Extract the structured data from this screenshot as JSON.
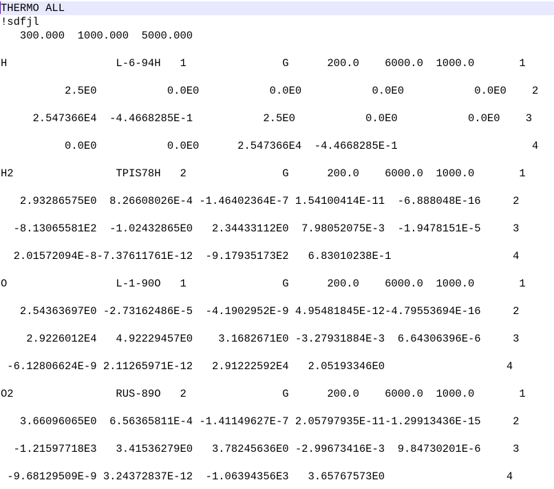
{
  "editor": {
    "current_line_color": "#e8e8ff",
    "caret_color": "#8000ff",
    "lines": [
      "THERMO ALL",
      "!sdfjl",
      "   300.000  1000.000  5000.000",
      "",
      "H                 L-6-94H   1               G      200.0    6000.0  1000.0       1",
      "",
      "          2.5E0           0.0E0           0.0E0           0.0E0           0.0E0    2",
      "",
      "     2.547366E4  -4.4668285E-1           2.5E0           0.0E0           0.0E0    3",
      "",
      "          0.0E0           0.0E0      2.547366E4  -4.4668285E-1                     4",
      "",
      "H2                TPIS78H   2               G      200.0    6000.0  1000.0       1",
      "",
      "   2.93286575E0  8.26608026E-4 -1.46402364E-7 1.54100414E-11  -6.888048E-16     2",
      "",
      "  -8.13065581E2  -1.02432865E0   2.34433112E0  7.98052075E-3  -1.9478151E-5     3",
      "",
      "  2.01572094E-8-7.37611761E-12  -9.17935173E2   6.83010238E-1                   4",
      "",
      "O                 L-1-90O   1               G      200.0    6000.0  1000.0       1",
      "",
      "   2.54363697E0 -2.73162486E-5  -4.1902952E-9 4.95481845E-12-4.79553694E-16     2",
      "",
      "    2.9226012E4   4.92229457E0    3.1682671E0 -3.27931884E-3  6.64306396E-6     3",
      "",
      " -6.12806624E-9 2.11265971E-12   2.91222592E4   2.05193346E0                   4",
      "",
      "O2                RUS-89O   2               G      200.0    6000.0  1000.0       1",
      "",
      "   3.66096065E0  6.56365811E-4 -1.41149627E-7 2.05797935E-11-1.29913436E-15     2",
      "",
      "  -1.21597718E3   3.41536279E0   3.78245636E0 -2.99673416E-3  9.84730201E-6     3",
      "",
      " -9.68129509E-9 3.24372837E-12  -1.06394356E3   3.65767573E0                   4"
    ]
  }
}
